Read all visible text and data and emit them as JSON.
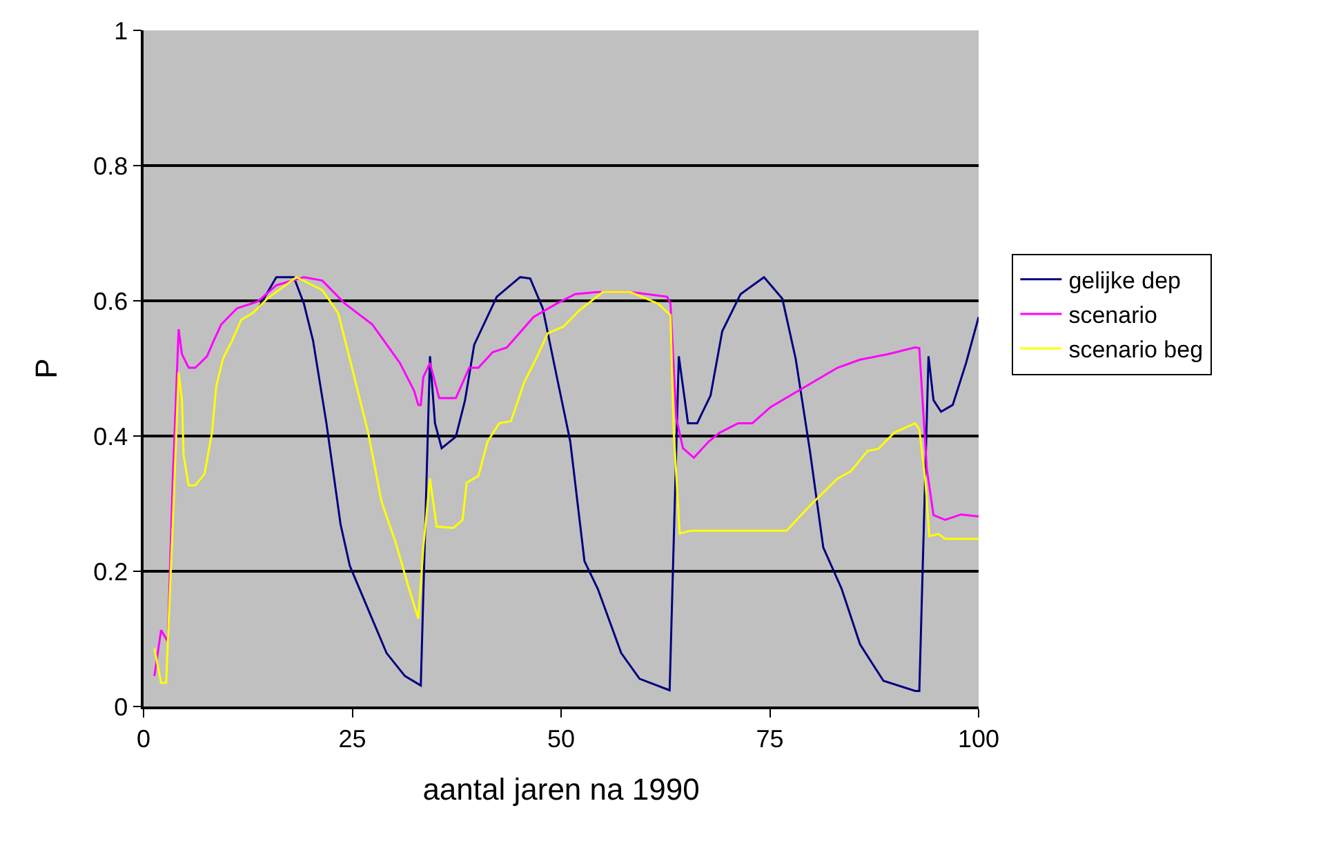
{
  "chart_data": {
    "type": "line",
    "xlabel": "aantal jaren na 1990",
    "ylabel": "P",
    "xlim": [
      0,
      100
    ],
    "xticks": [
      0,
      25,
      50,
      75,
      100
    ],
    "ylim": [
      0,
      1
    ],
    "yticks": [
      0,
      0.2,
      0.4,
      0.6,
      0.8,
      1
    ],
    "grid": "y",
    "legend": "right",
    "marker": "none",
    "line_style": "solid",
    "series": [
      {
        "name": "gelijke dep",
        "color": "#000080",
        "x": [
          13.8,
          15.9,
          18.0,
          19.2,
          20.3,
          21.9,
          23.6,
          24.7,
          29.1,
          31.3,
          33.2,
          34.3,
          34.9,
          35.7,
          37.4,
          38.5,
          39.6,
          42.3,
          45.1,
          46.3,
          47.8,
          49.5,
          51.1,
          52.8,
          54.4,
          57.2,
          59.4,
          63.0,
          64.1,
          65.2,
          66.3,
          67.9,
          69.3,
          71.5,
          74.3,
          76.5,
          78.1,
          79.8,
          81.4,
          83.6,
          85.8,
          88.6,
          92.4,
          92.9,
          94.0,
          94.6,
          95.5,
          96.9,
          98.5,
          100
        ],
        "values": [
          0.59,
          0.635,
          0.635,
          0.596,
          0.541,
          0.419,
          0.269,
          0.208,
          0.079,
          0.045,
          0.031,
          0.518,
          0.419,
          0.382,
          0.399,
          0.453,
          0.535,
          0.606,
          0.635,
          0.633,
          0.589,
          0.487,
          0.392,
          0.215,
          0.174,
          0.079,
          0.041,
          0.024,
          0.518,
          0.419,
          0.419,
          0.46,
          0.555,
          0.61,
          0.635,
          0.603,
          0.514,
          0.378,
          0.235,
          0.174,
          0.092,
          0.038,
          0.023,
          0.023,
          0.518,
          0.453,
          0.436,
          0.446,
          0.508,
          0.576
        ]
      },
      {
        "name": "scenario",
        "color": "#ff00ff",
        "x": [
          1.3,
          2.1,
          2.9,
          3.5,
          4.2,
          4.6,
          5.4,
          6.2,
          7.6,
          8.4,
          9.3,
          11.2,
          13.7,
          15.9,
          19.2,
          21.4,
          24.1,
          27.4,
          30.7,
          32.4,
          32.9,
          33.2,
          33.5,
          34.3,
          35.4,
          37.4,
          39.0,
          40.1,
          41.8,
          43.5,
          46.7,
          49.5,
          51.7,
          54.4,
          58.3,
          62.7,
          63.1,
          63.8,
          64.6,
          65.9,
          67.7,
          69.0,
          71.2,
          72.9,
          75.1,
          79.8,
          83.1,
          85.8,
          89.1,
          92.4,
          92.9,
          93.8,
          94.6,
          96.0,
          97.9,
          100
        ],
        "values": [
          0.045,
          0.113,
          0.096,
          0.337,
          0.558,
          0.521,
          0.501,
          0.501,
          0.518,
          0.541,
          0.565,
          0.589,
          0.599,
          0.623,
          0.635,
          0.63,
          0.596,
          0.565,
          0.508,
          0.467,
          0.446,
          0.446,
          0.487,
          0.508,
          0.456,
          0.456,
          0.501,
          0.501,
          0.524,
          0.531,
          0.576,
          0.596,
          0.61,
          0.613,
          0.613,
          0.606,
          0.596,
          0.426,
          0.382,
          0.368,
          0.392,
          0.405,
          0.419,
          0.419,
          0.443,
          0.477,
          0.501,
          0.513,
          0.521,
          0.531,
          0.53,
          0.351,
          0.283,
          0.276,
          0.284,
          0.281
        ]
      },
      {
        "name": "scenario beg",
        "color": "#ffff00",
        "x": [
          1.3,
          2.1,
          2.7,
          3.5,
          4.2,
          4.6,
          4.8,
          5.4,
          6.2,
          7.3,
          8.2,
          8.7,
          9.5,
          10.6,
          11.7,
          13.1,
          14.8,
          18.3,
          21.4,
          23.3,
          24.7,
          26.9,
          28.5,
          30.2,
          31.8,
          32.9,
          33.5,
          34.3,
          35.1,
          37.1,
          38.2,
          38.7,
          40.1,
          41.2,
          42.6,
          44.0,
          45.6,
          47.0,
          48.4,
          50.3,
          52.2,
          55.0,
          58.3,
          61.6,
          63.1,
          63.5,
          64.2,
          65.5,
          77.0,
          79.8,
          83.1,
          84.7,
          86.7,
          88.0,
          89.9,
          92.4,
          92.9,
          93.6,
          94.1,
          95.2,
          96.0,
          100
        ],
        "values": [
          0.086,
          0.035,
          0.035,
          0.269,
          0.494,
          0.453,
          0.371,
          0.327,
          0.327,
          0.344,
          0.405,
          0.473,
          0.514,
          0.541,
          0.572,
          0.582,
          0.603,
          0.635,
          0.616,
          0.582,
          0.514,
          0.405,
          0.303,
          0.242,
          0.174,
          0.13,
          0.235,
          0.337,
          0.266,
          0.264,
          0.276,
          0.331,
          0.341,
          0.392,
          0.419,
          0.422,
          0.48,
          0.514,
          0.552,
          0.562,
          0.586,
          0.613,
          0.613,
          0.596,
          0.579,
          0.405,
          0.256,
          0.26,
          0.26,
          0.297,
          0.337,
          0.348,
          0.378,
          0.381,
          0.405,
          0.419,
          0.41,
          0.337,
          0.252,
          0.255,
          0.248,
          0.248
        ]
      }
    ]
  }
}
